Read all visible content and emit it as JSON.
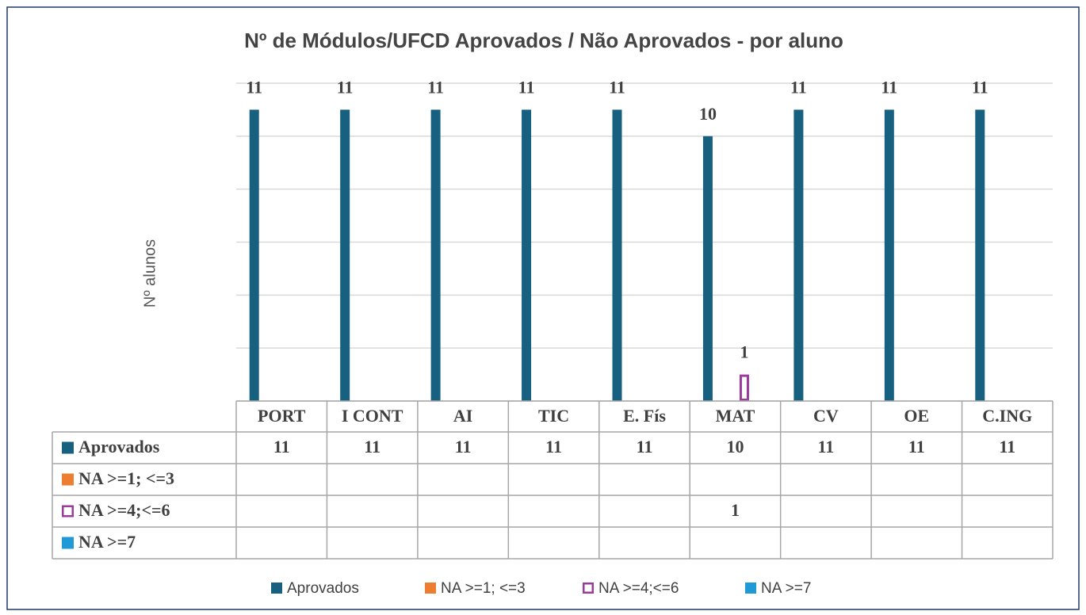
{
  "chart_data": {
    "type": "bar",
    "title": "Nº de Módulos/UFCD Aprovados / Não Aprovados - por aluno",
    "y_label": "Nº alunos",
    "categories": [
      "PORT",
      "I CONT",
      "AI",
      "TIC",
      "E. Fís",
      "MAT",
      "CV",
      "OE",
      "C.ING"
    ],
    "series": [
      {
        "name": "Aprovados",
        "color": "#17607f",
        "style": "fill",
        "values": [
          11,
          11,
          11,
          11,
          11,
          10,
          11,
          11,
          11
        ]
      },
      {
        "name": "NA >=1; <=3",
        "color": "#ed7d31",
        "style": "fill",
        "values": [
          null,
          null,
          null,
          null,
          null,
          null,
          null,
          null,
          null
        ]
      },
      {
        "name": "NA >=4;<=6",
        "color": "#9b3c9b",
        "style": "outline",
        "values": [
          null,
          null,
          null,
          null,
          null,
          1,
          null,
          null,
          null
        ]
      },
      {
        "name": "NA >=7",
        "color": "#1f9ad6",
        "style": "fill",
        "values": [
          null,
          null,
          null,
          null,
          null,
          null,
          null,
          null,
          null
        ]
      }
    ],
    "ylim": [
      0,
      12
    ],
    "yticks": [
      0,
      2,
      4,
      6,
      8,
      10,
      12
    ],
    "grid": true
  }
}
